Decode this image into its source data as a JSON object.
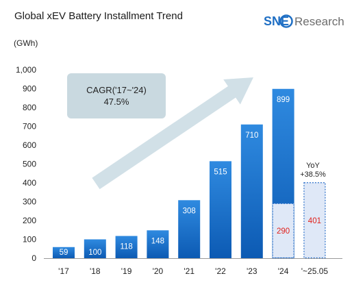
{
  "colors": {
    "bar_top": "#2f8ae0",
    "bar_bottom": "#0c5ab3",
    "dashed_fill": "#dfe8f7",
    "dashed_stroke": "#2a6fc9",
    "red_text": "#e0201b",
    "arrow": "#c9dbe3",
    "callout": "#c9d9e0",
    "logo_blue": "#1f6fc4",
    "logo_gray": "#6d6d6d"
  },
  "logo": {
    "sne": "SNE",
    "research": "Research"
  },
  "chart_data": {
    "type": "bar",
    "title": "Global xEV Battery Installment Trend",
    "unit": "(GWh)",
    "ylim": [
      0,
      1000
    ],
    "yticks": [
      "0",
      "100",
      "200",
      "300",
      "400",
      "500",
      "600",
      "700",
      "800",
      "900",
      "1,000"
    ],
    "categories": [
      "'17",
      "'18",
      "'19",
      "'20",
      "'21",
      "'22",
      "'23",
      "'24",
      "'~25.05"
    ],
    "values": [
      59,
      100,
      118,
      148,
      308,
      515,
      710,
      899,
      null
    ],
    "value_labels": [
      "59",
      "100",
      "118",
      "148",
      "308",
      "515",
      "710",
      "899",
      ""
    ],
    "ytd_comparison": {
      "categories": [
        "'24",
        "'~25.05"
      ],
      "values": [
        290,
        401
      ],
      "labels": [
        "290",
        "401"
      ]
    },
    "annotations": {
      "cagr_line1": "CAGR('17~'24)",
      "cagr_line2": "47.5%",
      "yoy_line1": "YoY",
      "yoy_line2": "+38.5%"
    },
    "grid": false,
    "legend": "none"
  }
}
